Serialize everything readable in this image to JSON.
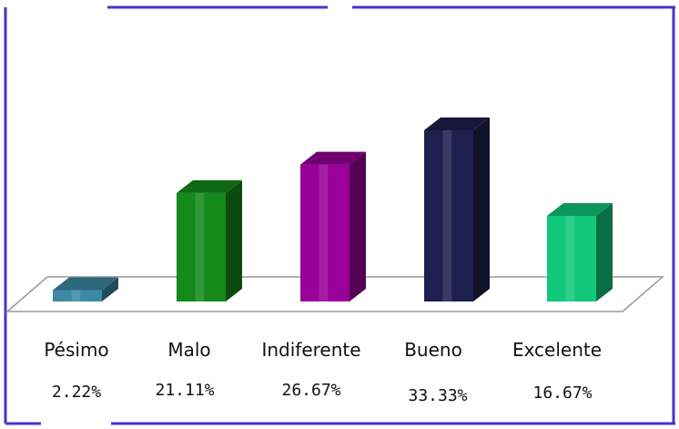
{
  "chart_data": {
    "type": "bar",
    "categories": [
      "Pésimo",
      "Malo",
      "Indiferente",
      "Bueno",
      "Excelente"
    ],
    "values": [
      2.22,
      21.11,
      26.67,
      33.33,
      16.67
    ],
    "value_labels": [
      "2.22%",
      "21.11%",
      "26.67%",
      "33.33%",
      "16.67%"
    ],
    "colors": [
      "#3d8aa6",
      "#138a1a",
      "#990099",
      "#1f1f4f",
      "#10c87a"
    ],
    "title": "",
    "xlabel": "",
    "ylabel": "",
    "ylim": [
      0,
      40
    ],
    "grid": false,
    "legend": "none",
    "style": "3d-column"
  },
  "frame": {
    "border_color": "#4a33c6"
  }
}
